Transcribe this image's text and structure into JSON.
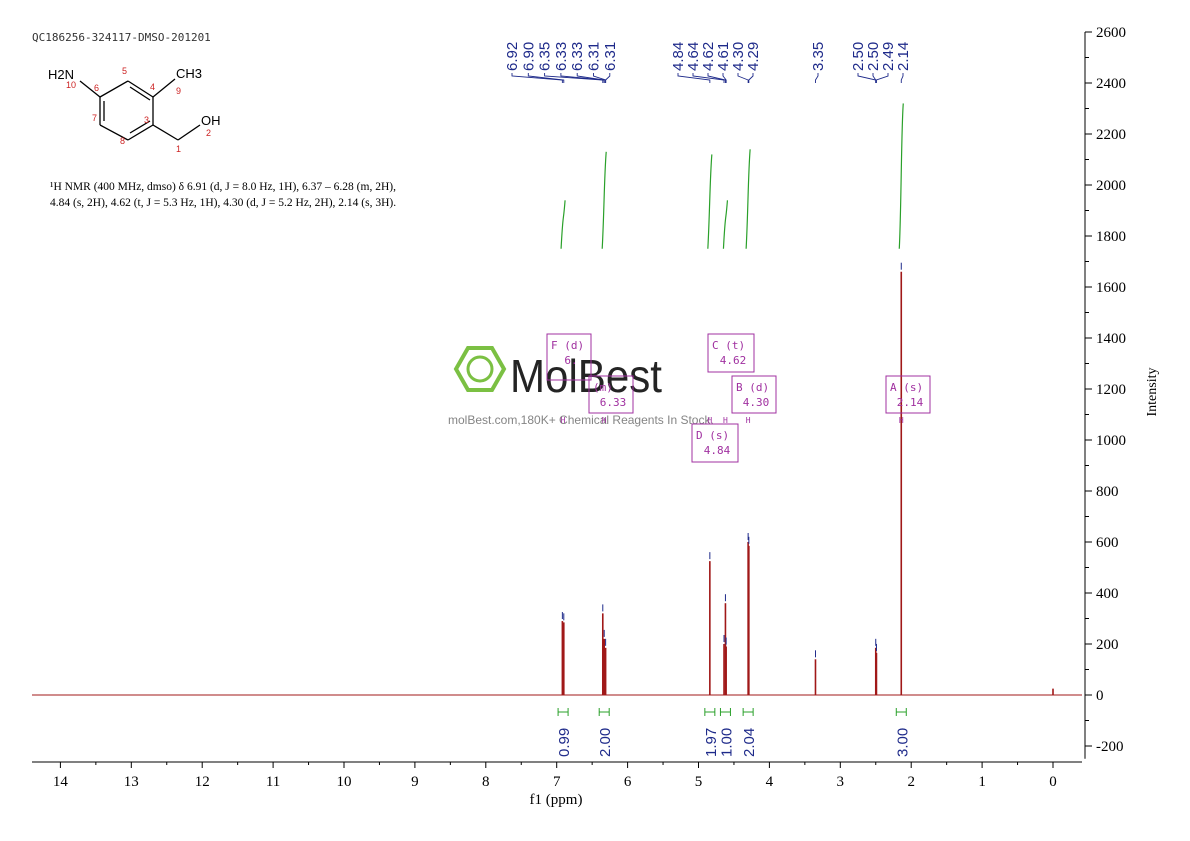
{
  "sample_id": "QC186256-324117-DMSO-201201",
  "structure": {
    "amine_label": "H2N",
    "methyl_label": "CH3",
    "hydroxyl_label": "OH",
    "atom_numbers": [
      "1",
      "2",
      "3",
      "4",
      "5",
      "6",
      "7",
      "8",
      "9",
      "10"
    ]
  },
  "nmr_text": {
    "line1": "¹H NMR (400 MHz, dmso) δ 6.91 (d, J = 8.0 Hz, 1H), 6.37 – 6.28 (m, 2H),",
    "line2": "4.84 (s, 2H), 4.62 (t, J = 5.3 Hz, 1H), 4.30 (d, J = 5.2 Hz, 2H), 2.14 (s, 3H)."
  },
  "watermark": {
    "brand": "MolBest",
    "tagline": "molBest.com,180K+ Chemical Reagents In Stock."
  },
  "colors": {
    "spectrum": "#a01818",
    "peak_labels": "#1e2a8a",
    "integral": "#2aa02a",
    "multiplet_box": "#a030a0",
    "axis": "#000000",
    "watermark_green": "#7bc043"
  },
  "chart_data": {
    "type": "line",
    "xlabel": "f1 (ppm)",
    "ylabel": "Intensity",
    "xlim": [
      14.5,
      -0.4
    ],
    "ylim": [
      -250,
      2600
    ],
    "x_reversed": true,
    "x_ticks": [
      14,
      13,
      12,
      11,
      10,
      9,
      8,
      7,
      6,
      5,
      4,
      3,
      2,
      1,
      0
    ],
    "y_ticks": [
      -200,
      0,
      200,
      400,
      600,
      800,
      1000,
      1200,
      1400,
      1600,
      1800,
      2000,
      2200,
      2400,
      2600
    ],
    "peaks": [
      {
        "ppm": 6.92,
        "height": 290
      },
      {
        "ppm": 6.9,
        "height": 285
      },
      {
        "ppm": 6.35,
        "height": 320
      },
      {
        "ppm": 6.33,
        "height": 220
      },
      {
        "ppm": 6.31,
        "height": 185
      },
      {
        "ppm": 4.84,
        "height": 525
      },
      {
        "ppm": 4.64,
        "height": 200
      },
      {
        "ppm": 4.62,
        "height": 360
      },
      {
        "ppm": 4.61,
        "height": 190
      },
      {
        "ppm": 4.3,
        "height": 600
      },
      {
        "ppm": 4.29,
        "height": 585
      },
      {
        "ppm": 3.35,
        "height": 140
      },
      {
        "ppm": 2.5,
        "height": 185
      },
      {
        "ppm": 2.49,
        "height": 165
      },
      {
        "ppm": 2.14,
        "height": 1660
      },
      {
        "ppm": 0.0,
        "height": 25
      }
    ],
    "peak_labels": [
      "6.92",
      "6.90",
      "6.35",
      "6.33",
      "6.33",
      "6.31",
      "6.31",
      "4.84",
      "4.64",
      "4.62",
      "4.61",
      "4.30",
      "4.29",
      "3.35",
      "2.50",
      "2.50",
      "2.49",
      "2.14"
    ],
    "integrals": [
      {
        "ppm": 6.91,
        "value": "0.99",
        "curve_top": 1940
      },
      {
        "ppm": 6.33,
        "value": "2.00",
        "curve_top": 2130
      },
      {
        "ppm": 4.84,
        "value": "1.97",
        "curve_top": 2120
      },
      {
        "ppm": 4.62,
        "value": "1.00",
        "curve_top": 1940
      },
      {
        "ppm": 4.3,
        "value": "2.04",
        "curve_top": 2140
      },
      {
        "ppm": 2.14,
        "value": "3.00",
        "curve_top": 2320
      }
    ],
    "multiplets": [
      {
        "label": "F (d)",
        "shift": "6.",
        "ppm": 6.91
      },
      {
        "label": "(m)",
        "shift": "6.33",
        "ppm": 6.33
      },
      {
        "label": "C (t)",
        "shift": "4.62",
        "ppm": 4.62
      },
      {
        "label": "B (d)",
        "shift": "4.30",
        "ppm": 4.3
      },
      {
        "label": "D (s)",
        "shift": "4.84",
        "ppm": 4.84
      },
      {
        "label": "A (s)",
        "shift": "2.14",
        "ppm": 2.14
      }
    ]
  }
}
